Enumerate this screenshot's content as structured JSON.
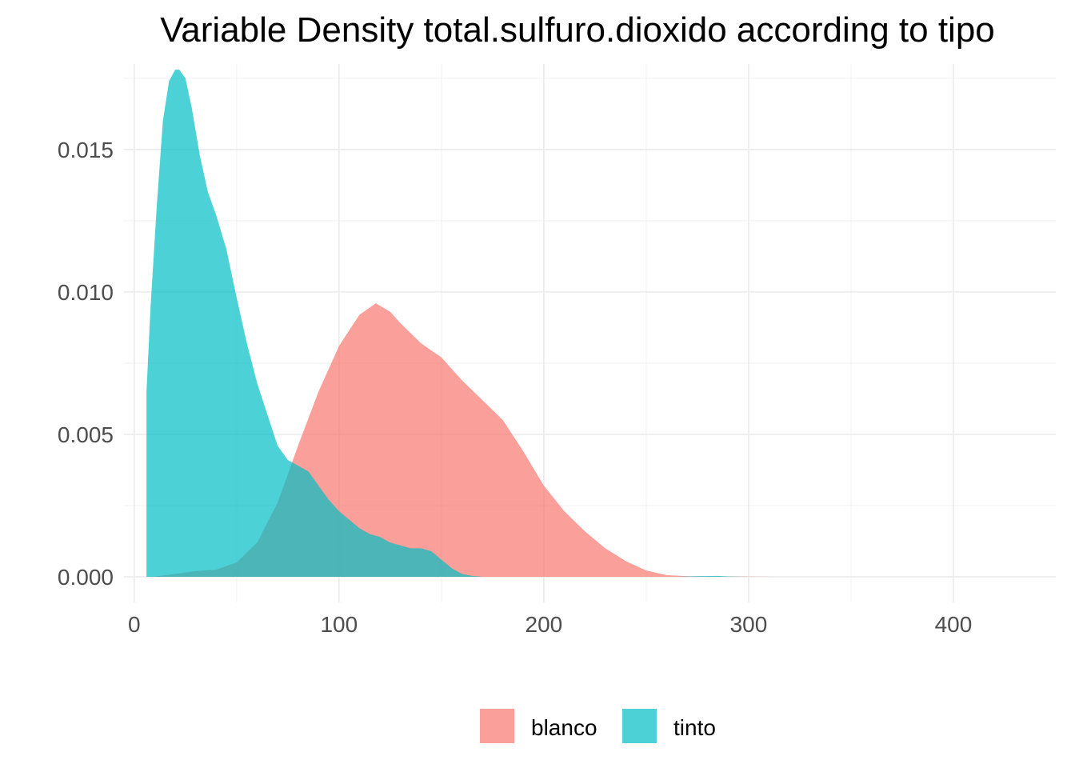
{
  "chart_data": {
    "type": "area",
    "title": "Variable Density total.sulfuro.dioxido according to tipo",
    "xlabel": "",
    "ylabel": "",
    "xlim": [
      -5,
      450
    ],
    "ylim": [
      -0.0009,
      0.018
    ],
    "x_ticks": [
      0,
      100,
      200,
      300,
      400
    ],
    "x_tick_labels": [
      "0",
      "100",
      "200",
      "300",
      "400"
    ],
    "y_ticks": [
      0.0,
      0.005,
      0.01,
      0.015
    ],
    "y_tick_labels": [
      "0.000",
      "0.005",
      "0.010",
      "0.015"
    ],
    "grid": true,
    "legend_position": "bottom",
    "fill_opacity": 0.7,
    "series": [
      {
        "name": "blanco",
        "color": "#F8766D",
        "x": [
          9,
          20,
          30,
          40,
          50,
          60,
          70,
          80,
          90,
          100,
          110,
          118,
          125,
          130,
          140,
          150,
          160,
          170,
          180,
          190,
          200,
          210,
          220,
          230,
          240,
          250,
          260,
          270,
          280,
          290,
          300,
          313
        ],
        "y": [
          0.0,
          0.0001,
          0.0002,
          0.00025,
          0.0005,
          0.0012,
          0.0026,
          0.0046,
          0.0065,
          0.0081,
          0.0092,
          0.0096,
          0.0093,
          0.0089,
          0.0082,
          0.0077,
          0.0069,
          0.0062,
          0.0055,
          0.0044,
          0.0032,
          0.0023,
          0.0016,
          0.001,
          0.00055,
          0.00022,
          6e-05,
          2e-05,
          1e-05,
          1e-05,
          5e-06,
          0.0
        ]
      },
      {
        "name": "tinto",
        "color": "#00BFC4",
        "x": [
          6,
          6,
          8,
          11,
          14,
          17,
          20,
          22,
          25,
          28,
          32,
          36,
          40,
          45,
          50,
          55,
          60,
          65,
          70,
          75,
          80,
          85,
          90,
          95,
          100,
          105,
          110,
          115,
          120,
          125,
          130,
          135,
          140,
          145,
          150,
          155,
          160,
          165,
          170,
          180,
          200,
          220,
          250,
          265,
          275,
          285,
          290,
          300
        ],
        "y": [
          0.0,
          0.0065,
          0.0095,
          0.013,
          0.016,
          0.0174,
          0.0178,
          0.0178,
          0.0175,
          0.0165,
          0.0148,
          0.0135,
          0.0127,
          0.0115,
          0.0098,
          0.0082,
          0.0068,
          0.0057,
          0.0046,
          0.0041,
          0.0039,
          0.0037,
          0.0032,
          0.0027,
          0.0023,
          0.002,
          0.0017,
          0.0015,
          0.0014,
          0.0012,
          0.0011,
          0.001,
          0.001,
          0.0009,
          0.0006,
          0.0003,
          0.0001,
          3e-05,
          0.0,
          0.0,
          0.0,
          0.0,
          0.0,
          0.0,
          2e-05,
          3e-05,
          1e-05,
          0.0
        ]
      }
    ]
  }
}
